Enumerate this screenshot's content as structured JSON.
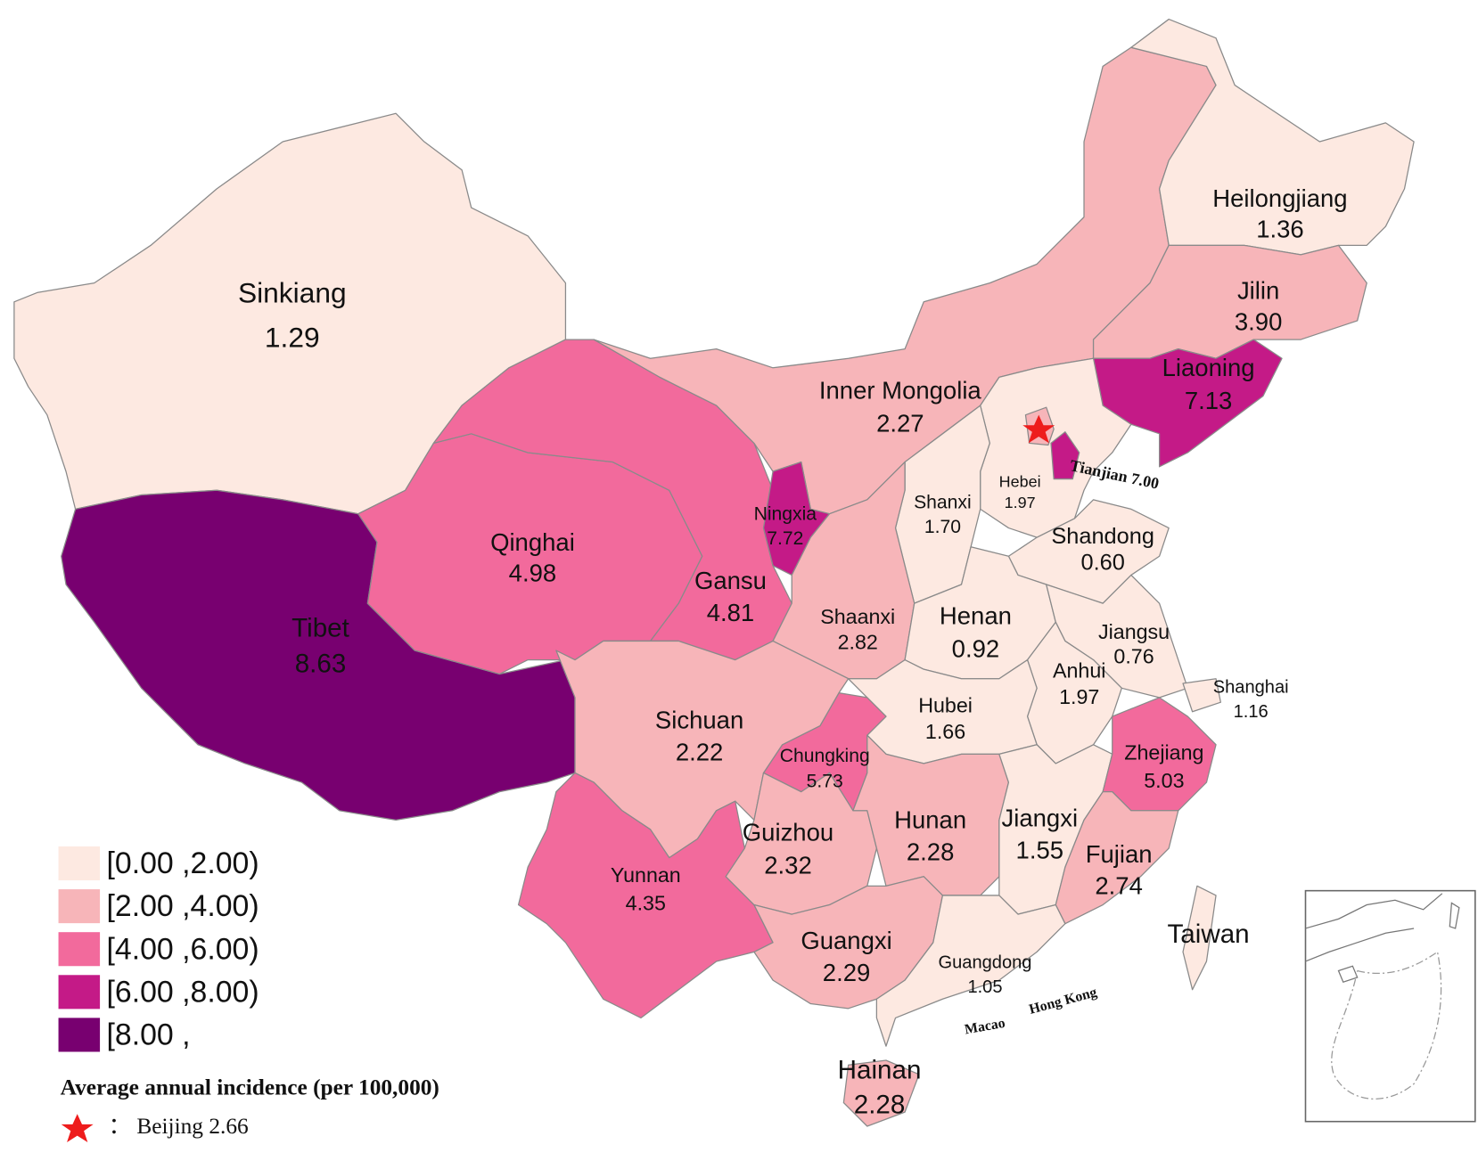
{
  "map": {
    "regions": [
      {
        "name": "Sinkiang",
        "value": 1.29,
        "value_label": "1.29"
      },
      {
        "name": "Tibet",
        "value": 8.63,
        "value_label": "8.63"
      },
      {
        "name": "Qinghai",
        "value": 4.98,
        "value_label": "4.98"
      },
      {
        "name": "Gansu",
        "value": 4.81,
        "value_label": "4.81"
      },
      {
        "name": "Inner  Mongolia",
        "value": 2.27,
        "value_label": "2.27"
      },
      {
        "name": "Heilongjiang",
        "value": 1.36,
        "value_label": "1.36"
      },
      {
        "name": "Jilin",
        "value": 3.9,
        "value_label": "3.90"
      },
      {
        "name": "Liaoning",
        "value": 7.13,
        "value_label": "7.13"
      },
      {
        "name": "Hebei",
        "value": 1.97,
        "value_label": "1.97"
      },
      {
        "name": "Tianjian",
        "value": 7.0,
        "value_label": "7.00"
      },
      {
        "name": "Shanxi",
        "value": 1.7,
        "value_label": "1.70"
      },
      {
        "name": "Shandong",
        "value": 0.6,
        "value_label": "0.60"
      },
      {
        "name": "Ningxia",
        "value": 7.72,
        "value_label": "7.72"
      },
      {
        "name": "Shaanxi",
        "value": 2.82,
        "value_label": "2.82"
      },
      {
        "name": "Henan",
        "value": 0.92,
        "value_label": "0.92"
      },
      {
        "name": "Jiangsu",
        "value": 0.76,
        "value_label": "0.76"
      },
      {
        "name": "Shanghai",
        "value": 1.16,
        "value_label": "1.16"
      },
      {
        "name": "Anhui",
        "value": 1.97,
        "value_label": "1.97"
      },
      {
        "name": "Hubei",
        "value": 1.66,
        "value_label": "1.66"
      },
      {
        "name": "Chungking",
        "value": 5.73,
        "value_label": "5.73"
      },
      {
        "name": "Sichuan",
        "value": 2.22,
        "value_label": "2.22"
      },
      {
        "name": "Yunnan",
        "value": 4.35,
        "value_label": "4.35"
      },
      {
        "name": "Guizhou",
        "value": 2.32,
        "value_label": "2.32"
      },
      {
        "name": "Hunan",
        "value": 2.28,
        "value_label": "2.28"
      },
      {
        "name": "Jiangxi",
        "value": 1.55,
        "value_label": "1.55"
      },
      {
        "name": "Zhejiang",
        "value": 5.03,
        "value_label": "5.03"
      },
      {
        "name": "Fujian",
        "value": 2.74,
        "value_label": "2.74"
      },
      {
        "name": "Guangxi",
        "value": 2.29,
        "value_label": "2.29"
      },
      {
        "name": "Guangdong",
        "value": 1.05,
        "value_label": "1.05"
      },
      {
        "name": "Hainan",
        "value": 2.28,
        "value_label": "2.28"
      }
    ],
    "beijing": {
      "name": "Beijing",
      "value": 2.66,
      "value_label": "2.66"
    },
    "place_labels": {
      "taiwan": "Taiwan",
      "macao": "Macao",
      "hong_kong": "Hong Kong"
    },
    "legend": {
      "title": "Average annual  incidence (per 100,000)",
      "items": [
        {
          "label": "[0.00 ,2.00)",
          "min": 0,
          "max": 2,
          "color": "#fde9e1"
        },
        {
          "label": "[2.00 ,4.00)",
          "min": 2,
          "max": 4,
          "color": "#f7b5b9"
        },
        {
          "label": "[4.00 ,6.00)",
          "min": 4,
          "max": 6,
          "color": "#f26a9c"
        },
        {
          "label": "[6.00 ,8.00)",
          "min": 6,
          "max": 8,
          "color": "#c41a87"
        },
        {
          "label": "[8.00 ,",
          "min": 8,
          "color": "#780070"
        }
      ]
    }
  }
}
